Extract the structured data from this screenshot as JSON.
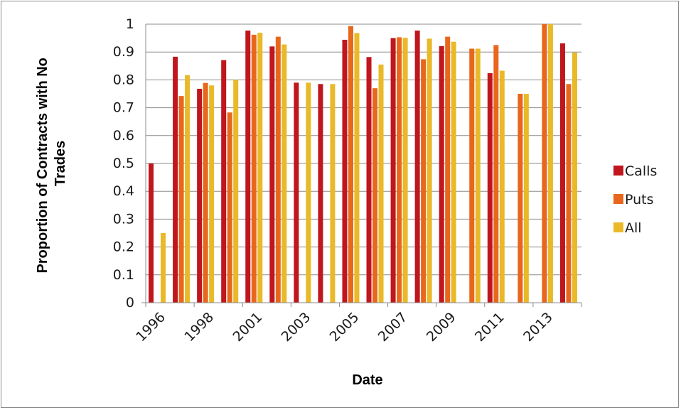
{
  "chart_data": {
    "type": "bar",
    "categories": [
      "1996",
      "1997",
      "1998",
      "1999",
      "2001",
      "2002",
      "2003",
      "2004",
      "2005",
      "2006",
      "2007",
      "2008",
      "2009",
      "2010",
      "2011",
      "2012",
      "2013",
      "2014"
    ],
    "x_tick_labels": [
      "1996",
      "1998",
      "2001",
      "2003",
      "2005",
      "2007",
      "2009",
      "2011",
      "2013"
    ],
    "series": [
      {
        "name": "Calls",
        "color": "#c0161d",
        "values": [
          0.5,
          0.883,
          0.768,
          0.871,
          0.977,
          0.92,
          0.79,
          0.785,
          0.944,
          0.882,
          0.95,
          0.977,
          0.921,
          null,
          0.824,
          null,
          null,
          0.931
        ]
      },
      {
        "name": "Puts",
        "color": "#e8671c",
        "values": [
          null,
          0.742,
          0.789,
          0.683,
          0.962,
          0.955,
          null,
          null,
          0.993,
          0.77,
          0.953,
          0.874,
          0.955,
          0.912,
          0.925,
          0.75,
          1.0,
          0.785
        ]
      },
      {
        "name": "All",
        "color": "#e9b928",
        "values": [
          0.25,
          0.817,
          0.78,
          0.8,
          0.969,
          0.927,
          0.79,
          0.785,
          0.968,
          0.855,
          0.951,
          0.948,
          0.937,
          0.912,
          0.833,
          0.75,
          1.0,
          0.898
        ]
      }
    ],
    "y_ticks": [
      "0",
      "0.1",
      "0.2",
      "0.3",
      "0.4",
      "0.5",
      "0.6",
      "0.7",
      "0.8",
      "0.9",
      "1"
    ],
    "xlabel": "Date",
    "ylabel": "Proportion of Contracts with No Trades",
    "ylim": [
      0,
      1
    ],
    "grid": true,
    "legend": "right"
  }
}
